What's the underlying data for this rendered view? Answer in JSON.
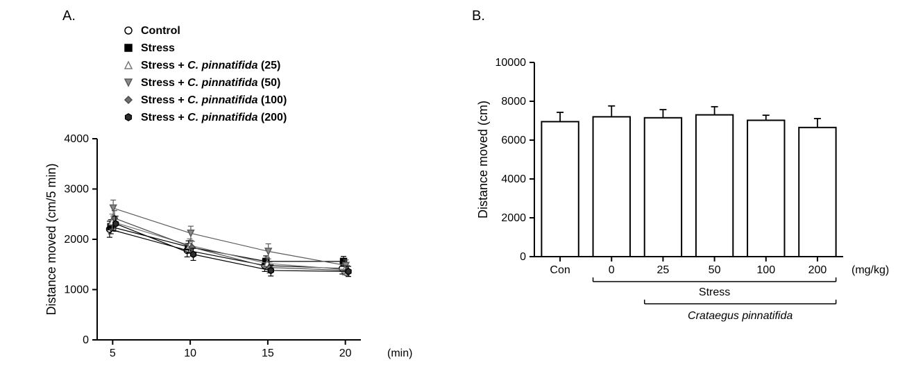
{
  "panelA": {
    "label": "A.",
    "type": "line",
    "xlabel": "(min)",
    "ylabel": "Distance moved (cm/5 min)",
    "x_values": [
      5,
      10,
      15,
      20
    ],
    "xlim": [
      4,
      21
    ],
    "ylim": [
      0,
      4000
    ],
    "ytick_step": 1000,
    "xtick_values": [
      5,
      10,
      15,
      20
    ],
    "title_fontsize": 20,
    "label_fontsize": 18,
    "tick_fontsize": 16,
    "legend_fontsize": 16,
    "axis_color": "#000000",
    "background_color": "#ffffff",
    "line_width": 1.2,
    "marker_size": 9,
    "error_cap": 4,
    "series": [
      {
        "name": "Control",
        "legend_plain": "Control",
        "legend_italic": "",
        "legend_suffix": "",
        "marker": "circle",
        "fill": "#ffffff",
        "stroke": "#000000",
        "y": [
          2200,
          1780,
          1480,
          1420
        ],
        "err": [
          160,
          130,
          120,
          110
        ]
      },
      {
        "name": "Stress",
        "legend_plain": "Stress",
        "legend_italic": "",
        "legend_suffix": "",
        "marker": "square",
        "fill": "#000000",
        "stroke": "#000000",
        "y": [
          2250,
          1850,
          1560,
          1560
        ],
        "err": [
          140,
          120,
          110,
          100
        ]
      },
      {
        "name": "Stress + C. pinnatifida (25)",
        "legend_plain": "Stress + ",
        "legend_italic": "C. pinnatifida",
        "legend_suffix": " (25)",
        "marker": "triangle-up",
        "fill": "#ffffff",
        "stroke": "#7a7a7a",
        "y": [
          2350,
          1880,
          1520,
          1400
        ],
        "err": [
          150,
          130,
          120,
          110
        ]
      },
      {
        "name": "Stress + C. pinnatifida (50)",
        "legend_plain": "Stress + ",
        "legend_italic": "C. pinnatifida",
        "legend_suffix": " (50)",
        "marker": "triangle-down",
        "fill": "#8a8a8a",
        "stroke": "#5a5a5a",
        "y": [
          2620,
          2120,
          1760,
          1480
        ],
        "err": [
          160,
          140,
          150,
          110
        ]
      },
      {
        "name": "Stress + C. pinnatifida (100)",
        "legend_plain": "Stress + ",
        "legend_italic": "C. pinnatifida",
        "legend_suffix": " (100)",
        "marker": "diamond",
        "fill": "#6f6f6f",
        "stroke": "#4a4a4a",
        "y": [
          2420,
          1840,
          1440,
          1380
        ],
        "err": [
          150,
          120,
          110,
          100
        ]
      },
      {
        "name": "Stress + C. pinnatifida (200)",
        "legend_plain": "Stress + ",
        "legend_italic": "C. pinnatifida",
        "legend_suffix": " (200)",
        "marker": "hexagon",
        "fill": "#2e2e2e",
        "stroke": "#000000",
        "y": [
          2310,
          1700,
          1380,
          1360
        ],
        "err": [
          150,
          120,
          110,
          100
        ]
      }
    ]
  },
  "panelB": {
    "label": "B.",
    "type": "bar",
    "ylabel": "Distance moved (cm)",
    "xlabel_unit": "(mg/kg)",
    "group_label": "Stress",
    "sub_label": "Crataegus pinnatifida",
    "ylim": [
      0,
      10000
    ],
    "ytick_step": 2000,
    "categories": [
      "Con",
      "0",
      "25",
      "50",
      "100",
      "200"
    ],
    "values": [
      6950,
      7200,
      7150,
      7300,
      7020,
      6650
    ],
    "errors": [
      480,
      560,
      420,
      420,
      260,
      460
    ],
    "bar_fill": "#ffffff",
    "bar_stroke": "#000000",
    "bar_stroke_width": 2,
    "bar_width": 0.72,
    "axis_color": "#000000",
    "background_color": "#ffffff",
    "tick_fontsize": 16,
    "label_fontsize": 18,
    "error_cap": 5
  }
}
